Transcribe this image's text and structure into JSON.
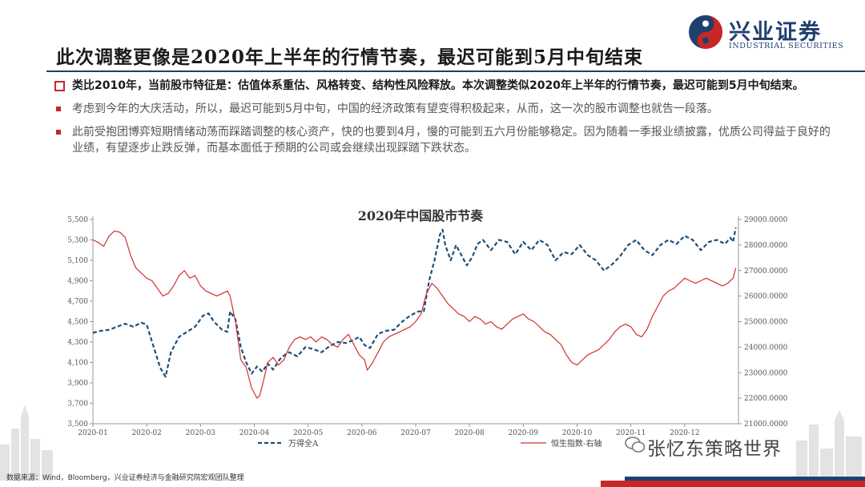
{
  "header": {
    "title": "此次调整更像是2020年上半年的行情节奏，最迟可能到5月中旬结束",
    "logo_cn": "兴业证券",
    "logo_en": "INDUSTRIAL SECURITIES"
  },
  "bullets": [
    {
      "text": "类比2010年，当前股市特征是：估值体系重估、风格转变、结构性风险释放。本次调整类似2020年上半年的行情节奏，最迟可能到5月中旬结束。"
    },
    {
      "text": "考虑到今年的大庆活动，所以，最迟可能到5月中旬，中国的经济政策有望变得积极起来，从而，这一次的股市调整也就告一段落。"
    },
    {
      "text": "此前受抱团博弈短期情绪动荡而踩踏调整的核心资产，快的也要到4月，慢的可能到五六月份能够稳定。因为随着一季报业绩披露，优质公司得益于良好的业绩，有望逐步止跌反弹，而基本面低于预期的公司或会继续出现踩踏下跌状态。"
    }
  ],
  "chart_data": {
    "type": "line",
    "title": "2020年中国股市节奏",
    "x_ticks": [
      "2020-01",
      "2020-02",
      "2020-03",
      "2020-04",
      "2020-05",
      "2020-06",
      "2020-07",
      "2020-08",
      "2020-09",
      "2020-10",
      "2020-11",
      "2020-12"
    ],
    "y_left_ticks": [
      "3,500",
      "3,700",
      "3,900",
      "4,100",
      "4,300",
      "4,500",
      "4,700",
      "4,900",
      "5,100",
      "5,300",
      "5,500"
    ],
    "y_left_range": [
      3500,
      5500
    ],
    "y_right_ticks": [
      "21000.0000",
      "22000.0000",
      "23000.0000",
      "24000.0000",
      "25000.0000",
      "26000.0000",
      "27000.0000",
      "28000.0000",
      "29000.0000"
    ],
    "y_right_range": [
      21000,
      29000
    ],
    "x_range": [
      0,
      12
    ],
    "series": [
      {
        "name": "万得全A",
        "axis": "left",
        "color": "#1f4e79",
        "style": "dashed",
        "points": [
          [
            0,
            4390
          ],
          [
            0.15,
            4410
          ],
          [
            0.3,
            4420
          ],
          [
            0.45,
            4450
          ],
          [
            0.6,
            4480
          ],
          [
            0.75,
            4450
          ],
          [
            0.9,
            4490
          ],
          [
            1.0,
            4470
          ],
          [
            1.1,
            4300
          ],
          [
            1.25,
            4050
          ],
          [
            1.35,
            3960
          ],
          [
            1.45,
            4200
          ],
          [
            1.6,
            4350
          ],
          [
            1.75,
            4400
          ],
          [
            1.9,
            4450
          ],
          [
            2.05,
            4560
          ],
          [
            2.15,
            4580
          ],
          [
            2.25,
            4500
          ],
          [
            2.4,
            4420
          ],
          [
            2.5,
            4400
          ],
          [
            2.55,
            4600
          ],
          [
            2.65,
            4520
          ],
          [
            2.75,
            4250
          ],
          [
            2.85,
            4100
          ],
          [
            2.95,
            3990
          ],
          [
            3.05,
            4060
          ],
          [
            3.15,
            4010
          ],
          [
            3.25,
            4090
          ],
          [
            3.35,
            4030
          ],
          [
            3.5,
            4150
          ],
          [
            3.65,
            4200
          ],
          [
            3.8,
            4160
          ],
          [
            3.95,
            4250
          ],
          [
            4.1,
            4230
          ],
          [
            4.25,
            4200
          ],
          [
            4.4,
            4260
          ],
          [
            4.55,
            4300
          ],
          [
            4.7,
            4290
          ],
          [
            4.85,
            4320
          ],
          [
            4.95,
            4350
          ],
          [
            5.05,
            4270
          ],
          [
            5.15,
            4240
          ],
          [
            5.3,
            4380
          ],
          [
            5.45,
            4410
          ],
          [
            5.6,
            4420
          ],
          [
            5.75,
            4500
          ],
          [
            5.9,
            4560
          ],
          [
            6.05,
            4600
          ],
          [
            6.15,
            4600
          ],
          [
            6.25,
            4900
          ],
          [
            6.35,
            5100
          ],
          [
            6.45,
            5350
          ],
          [
            6.5,
            5400
          ],
          [
            6.55,
            5250
          ],
          [
            6.65,
            5100
          ],
          [
            6.75,
            5250
          ],
          [
            6.85,
            5150
          ],
          [
            6.95,
            5050
          ],
          [
            7.05,
            5130
          ],
          [
            7.15,
            5260
          ],
          [
            7.25,
            5300
          ],
          [
            7.4,
            5200
          ],
          [
            7.55,
            5300
          ],
          [
            7.7,
            5280
          ],
          [
            7.85,
            5160
          ],
          [
            8.0,
            5280
          ],
          [
            8.15,
            5200
          ],
          [
            8.3,
            5300
          ],
          [
            8.45,
            5250
          ],
          [
            8.6,
            5100
          ],
          [
            8.75,
            5180
          ],
          [
            8.9,
            5160
          ],
          [
            9.05,
            5250
          ],
          [
            9.2,
            5150
          ],
          [
            9.35,
            5100
          ],
          [
            9.5,
            5000
          ],
          [
            9.65,
            5060
          ],
          [
            9.8,
            5140
          ],
          [
            9.95,
            5250
          ],
          [
            10.1,
            5300
          ],
          [
            10.25,
            5200
          ],
          [
            10.4,
            5150
          ],
          [
            10.55,
            5250
          ],
          [
            10.7,
            5300
          ],
          [
            10.85,
            5260
          ],
          [
            11.0,
            5340
          ],
          [
            11.15,
            5300
          ],
          [
            11.3,
            5200
          ],
          [
            11.45,
            5280
          ],
          [
            11.6,
            5300
          ],
          [
            11.75,
            5260
          ],
          [
            11.85,
            5320
          ],
          [
            11.9,
            5280
          ],
          [
            11.95,
            5420
          ]
        ]
      },
      {
        "name": "恒生指数-右轴",
        "axis": "right",
        "color": "#d0312d",
        "style": "solid",
        "points": [
          [
            0,
            28200
          ],
          [
            0.1,
            28100
          ],
          [
            0.2,
            27950
          ],
          [
            0.3,
            28350
          ],
          [
            0.4,
            28550
          ],
          [
            0.5,
            28500
          ],
          [
            0.6,
            28300
          ],
          [
            0.7,
            27600
          ],
          [
            0.8,
            27100
          ],
          [
            0.9,
            26900
          ],
          [
            1.0,
            26700
          ],
          [
            1.1,
            26600
          ],
          [
            1.2,
            26300
          ],
          [
            1.3,
            26000
          ],
          [
            1.4,
            26100
          ],
          [
            1.5,
            26400
          ],
          [
            1.6,
            26800
          ],
          [
            1.7,
            27000
          ],
          [
            1.8,
            26700
          ],
          [
            1.9,
            26800
          ],
          [
            2.0,
            26400
          ],
          [
            2.1,
            26200
          ],
          [
            2.2,
            26100
          ],
          [
            2.3,
            26000
          ],
          [
            2.4,
            26100
          ],
          [
            2.5,
            26200
          ],
          [
            2.55,
            26000
          ],
          [
            2.65,
            25000
          ],
          [
            2.75,
            23500
          ],
          [
            2.85,
            23200
          ],
          [
            2.95,
            22400
          ],
          [
            3.05,
            22000
          ],
          [
            3.1,
            22100
          ],
          [
            3.15,
            22500
          ],
          [
            3.25,
            23400
          ],
          [
            3.35,
            23600
          ],
          [
            3.45,
            23300
          ],
          [
            3.55,
            23500
          ],
          [
            3.65,
            24000
          ],
          [
            3.75,
            24300
          ],
          [
            3.85,
            24400
          ],
          [
            3.95,
            24300
          ],
          [
            4.05,
            24400
          ],
          [
            4.15,
            24200
          ],
          [
            4.25,
            24400
          ],
          [
            4.35,
            24300
          ],
          [
            4.45,
            24100
          ],
          [
            4.55,
            24000
          ],
          [
            4.65,
            24300
          ],
          [
            4.75,
            24500
          ],
          [
            4.85,
            24100
          ],
          [
            4.95,
            23700
          ],
          [
            5.05,
            23500
          ],
          [
            5.1,
            23100
          ],
          [
            5.2,
            23400
          ],
          [
            5.3,
            23800
          ],
          [
            5.4,
            24200
          ],
          [
            5.5,
            24400
          ],
          [
            5.6,
            24500
          ],
          [
            5.7,
            24600
          ],
          [
            5.8,
            24700
          ],
          [
            5.9,
            24800
          ],
          [
            6.0,
            25000
          ],
          [
            6.1,
            25300
          ],
          [
            6.2,
            26100
          ],
          [
            6.3,
            26500
          ],
          [
            6.4,
            26300
          ],
          [
            6.5,
            26000
          ],
          [
            6.6,
            25700
          ],
          [
            6.7,
            25500
          ],
          [
            6.8,
            25300
          ],
          [
            6.9,
            25200
          ],
          [
            7.0,
            25000
          ],
          [
            7.1,
            25200
          ],
          [
            7.2,
            25100
          ],
          [
            7.3,
            24900
          ],
          [
            7.4,
            25000
          ],
          [
            7.5,
            24800
          ],
          [
            7.6,
            24700
          ],
          [
            7.7,
            24900
          ],
          [
            7.8,
            25100
          ],
          [
            7.9,
            25200
          ],
          [
            8.0,
            25300
          ],
          [
            8.1,
            25100
          ],
          [
            8.2,
            25000
          ],
          [
            8.3,
            24800
          ],
          [
            8.4,
            24600
          ],
          [
            8.5,
            24500
          ],
          [
            8.6,
            24300
          ],
          [
            8.7,
            24100
          ],
          [
            8.8,
            23700
          ],
          [
            8.9,
            23400
          ],
          [
            9.0,
            23300
          ],
          [
            9.1,
            23500
          ],
          [
            9.2,
            23700
          ],
          [
            9.3,
            23800
          ],
          [
            9.4,
            23900
          ],
          [
            9.5,
            24100
          ],
          [
            9.6,
            24300
          ],
          [
            9.7,
            24600
          ],
          [
            9.8,
            24800
          ],
          [
            9.9,
            24900
          ],
          [
            10.0,
            24800
          ],
          [
            10.1,
            24500
          ],
          [
            10.2,
            24400
          ],
          [
            10.3,
            24700
          ],
          [
            10.4,
            25200
          ],
          [
            10.5,
            25600
          ],
          [
            10.6,
            26000
          ],
          [
            10.7,
            26200
          ],
          [
            10.8,
            26300
          ],
          [
            10.9,
            26500
          ],
          [
            11.0,
            26700
          ],
          [
            11.1,
            26600
          ],
          [
            11.2,
            26500
          ],
          [
            11.3,
            26600
          ],
          [
            11.4,
            26700
          ],
          [
            11.5,
            26600
          ],
          [
            11.6,
            26500
          ],
          [
            11.7,
            26400
          ],
          [
            11.8,
            26500
          ],
          [
            11.9,
            26700
          ],
          [
            11.95,
            27100
          ]
        ]
      }
    ],
    "legend": [
      "万得全A",
      "恒生指数-右轴"
    ],
    "legend_position": "bottom"
  },
  "footer": {
    "source": "数据来源：Wind，Bloomberg，兴业证券经济与金融研究院宏观团队整理",
    "watermark": "张忆东策略世界"
  }
}
